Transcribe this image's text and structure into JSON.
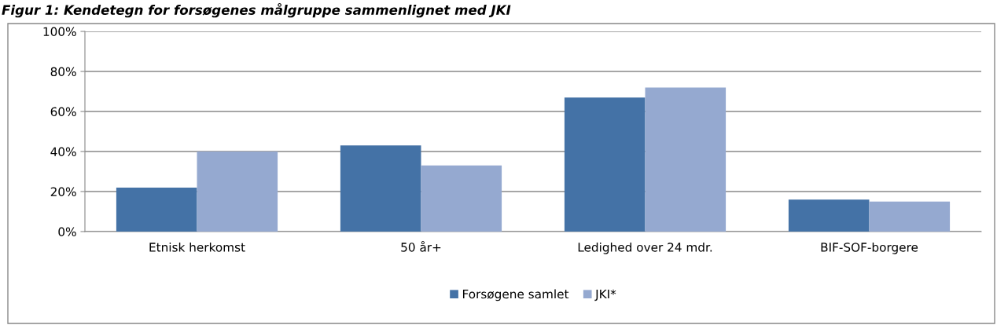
{
  "chart_data": {
    "type": "bar",
    "title": "Figur 1: Kendetegn for forsøgenes målgruppe sammenlignet med JKI",
    "categories": [
      "Etnisk herkomst",
      "50 år+",
      "Ledighed over 24 mdr.",
      "BIF-SOF-borgere"
    ],
    "series": [
      {
        "name": "Forsøgene samlet",
        "color": "#4472a6",
        "values": [
          22,
          43,
          67,
          16
        ]
      },
      {
        "name": "JKI*",
        "color": "#95a9d0",
        "values": [
          40,
          33,
          72,
          15
        ]
      }
    ],
    "ylim": [
      0,
      100
    ],
    "yticks": [
      {
        "value": 0,
        "label": "0%"
      },
      {
        "value": 20,
        "label": "20%"
      },
      {
        "value": 40,
        "label": "40%"
      },
      {
        "value": 60,
        "label": "60%"
      },
      {
        "value": 80,
        "label": "80%"
      },
      {
        "value": 100,
        "label": "100%"
      }
    ],
    "grid": "y",
    "legend": "bottom"
  }
}
